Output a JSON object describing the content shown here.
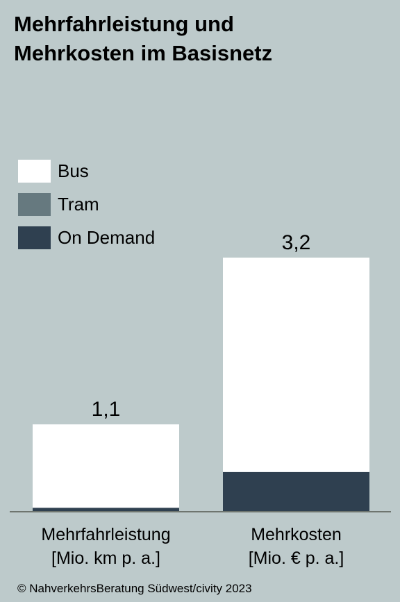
{
  "title_lines": [
    "Mehrfahrleistung und",
    "Mehrkosten im Basisnetz"
  ],
  "footer": "© NahverkehrsBeratung Südwest/civity 2023",
  "chart_data": {
    "type": "bar",
    "stacked": true,
    "categories": [
      [
        "Mehrfahrleistung",
        "[Mio. km p. a.]"
      ],
      [
        "Mehrkosten",
        "[Mio. € p. a.]"
      ]
    ],
    "totals": [
      "1,1",
      "3,2"
    ],
    "series": [
      {
        "name": "On Demand",
        "color": "#2f4050",
        "values": [
          0.05,
          0.5
        ]
      },
      {
        "name": "Tram",
        "color": "#66797f",
        "values": [
          0,
          0
        ]
      },
      {
        "name": "Bus",
        "color": "#ffffff",
        "values": [
          1.05,
          2.7
        ]
      }
    ],
    "ylim": [
      0,
      3.2
    ],
    "legend_order": [
      "Bus",
      "Tram",
      "On Demand"
    ],
    "grid": false,
    "legend_position": "top-left"
  }
}
